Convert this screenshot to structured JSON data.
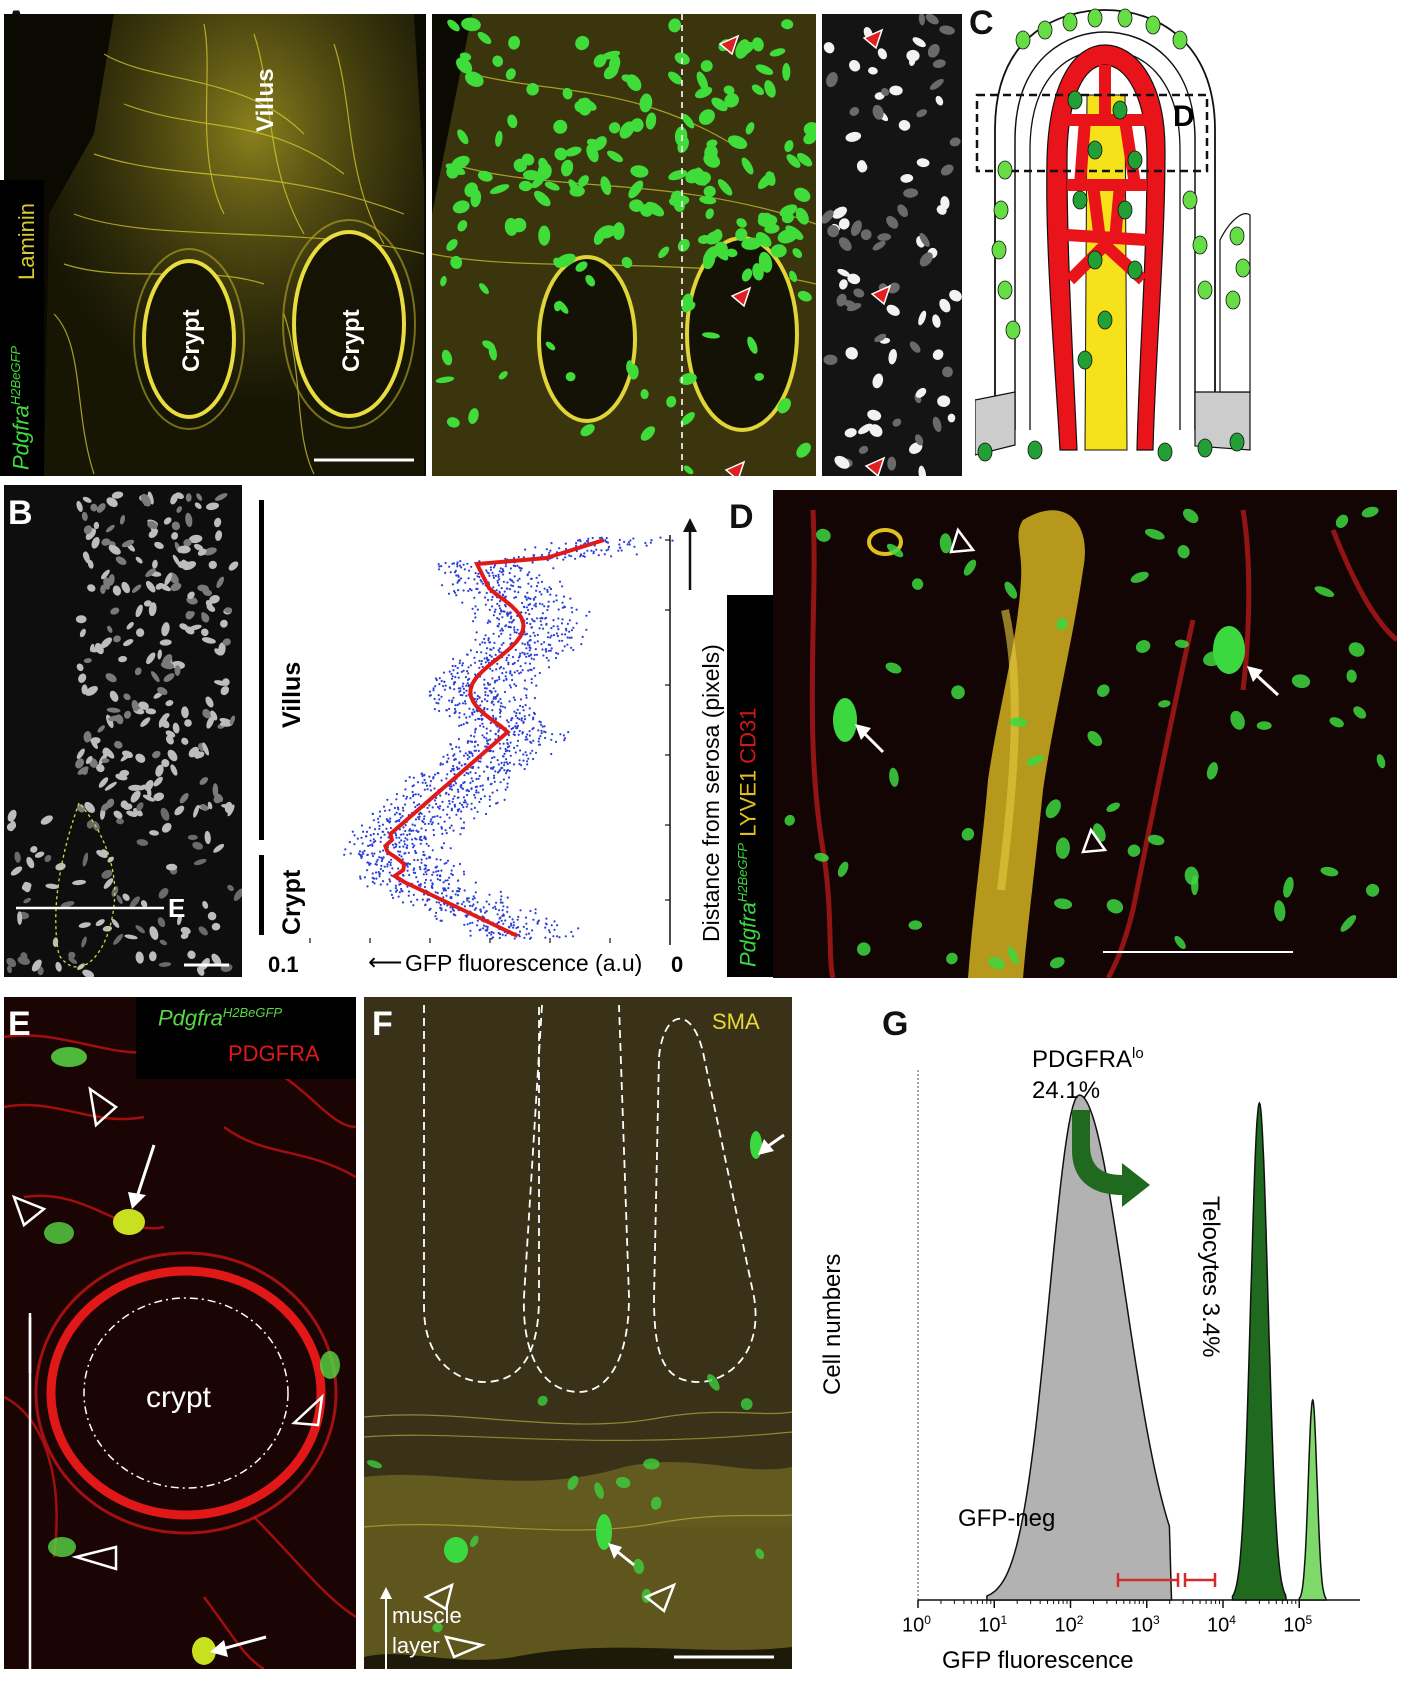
{
  "panels": {
    "A": {
      "label": "A",
      "left_text": {
        "villus": "Villus",
        "crypt1": "Crypt",
        "crypt2": "Crypt"
      },
      "channel_label": {
        "reporter": "Pdgfra",
        "superscript": "H2BeGFP",
        "stain": "Laminin"
      },
      "colors": {
        "laminin": "#d8cc30",
        "gfp": "#3fdc3a",
        "arrowhead": "#e02020"
      }
    },
    "B": {
      "label": "B",
      "villus": "Villus",
      "crypt": "Crypt",
      "line_label": "E",
      "y_axis": "Distance from serosa (pixels)",
      "x_axis": "GFP fluorescence (a.u)",
      "x_left": "0.1",
      "x_right": "0",
      "colors": {
        "scatter": "#2a3fd8",
        "trend": "#e01a1a"
      }
    },
    "C": {
      "label": "C",
      "box_label": "D",
      "colors": {
        "vessel": "#e8141a",
        "lacteal": "#f6e21a",
        "cell": "#22a035",
        "cell_light": "#66dd44"
      }
    },
    "D": {
      "label": "D",
      "channel_label": {
        "reporter": "Pdgfra",
        "superscript": "H2BeGFP",
        "lyve": "LYVE1",
        "cd": "CD31"
      },
      "colors": {
        "lyve": "#e0c020",
        "cd31": "#d01818",
        "gfp": "#3cd840"
      }
    },
    "E": {
      "label": "E",
      "channel_label": {
        "reporter": "Pdgfra",
        "superscript": "H2BeGFP",
        "stain": "PDGFRA"
      },
      "crypt": "crypt",
      "colors": {
        "pdgfra": "#e11818",
        "gfp": "#58d845"
      }
    },
    "F": {
      "label": "F",
      "stain": "SMA",
      "muscle1": "muscle",
      "muscle2": "layer",
      "colors": {
        "sma": "#c8c040",
        "gfp": "#3cd840"
      }
    },
    "G": {
      "label": "G",
      "pdgfra_lo_label": "PDGFRA",
      "pdgfra_lo_sup": "lo",
      "pdgfra_lo_pct": "24.1%",
      "telocytes": "Telocytes 3.4%",
      "gfp_neg": "GFP-neg",
      "y_axis": "Cell numbers",
      "x_axis": "GFP fluorescence",
      "ticks": [
        "10",
        "10",
        "10",
        "10",
        "10",
        "10"
      ],
      "tick_exp": [
        "0",
        "1",
        "2",
        "3",
        "4",
        "5"
      ],
      "colors": {
        "neg_fill": "#b2b2b2",
        "lo_fill": "#1f6a1f",
        "telo_fill": "#7fd86a",
        "gate": "#d42a2a"
      }
    }
  },
  "chart_data": {
    "type": "histogram",
    "xlabel": "GFP fluorescence",
    "ylabel": "Cell numbers",
    "x_scale": "log",
    "x_ticks": [
      "10^0",
      "10^1",
      "10^2",
      "10^3",
      "10^4",
      "10^5"
    ],
    "series": [
      {
        "name": "GFP-neg",
        "peak_x": 130
      },
      {
        "name": "PDGFRA lo",
        "peak_x": 30000,
        "percent": 24.1
      },
      {
        "name": "Telocytes",
        "peak_x": 150000,
        "percent": 3.4
      }
    ]
  }
}
